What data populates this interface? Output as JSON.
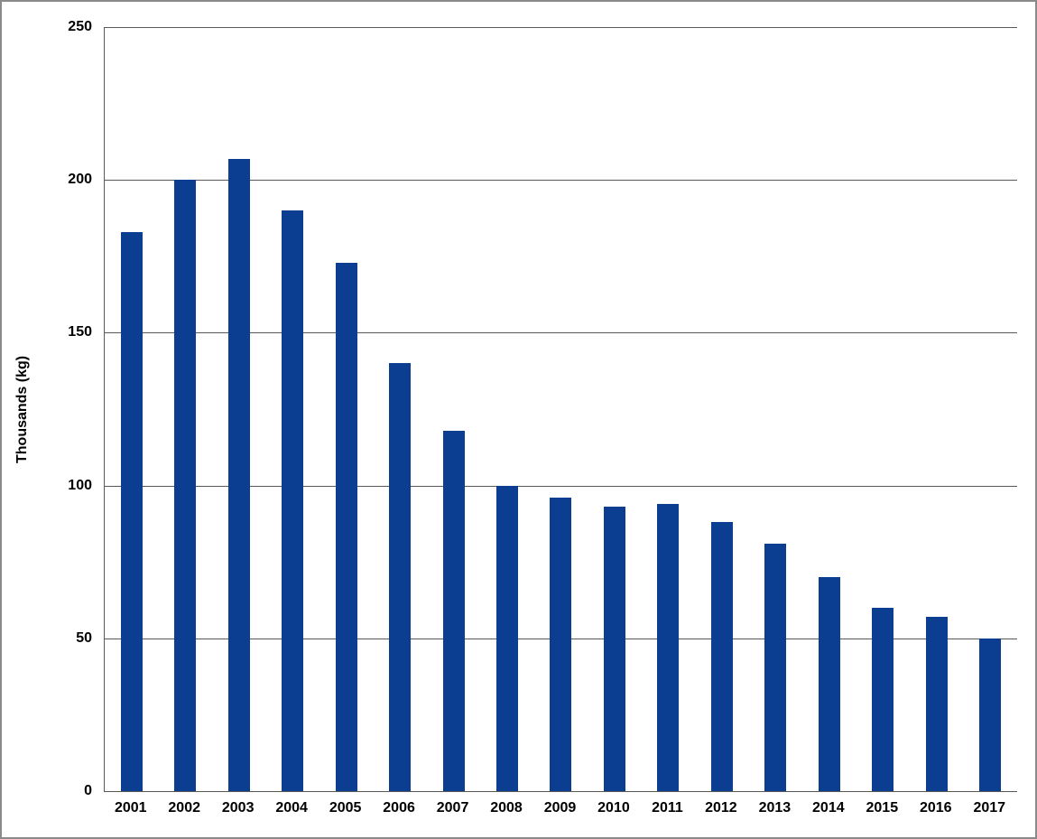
{
  "chart_data": {
    "type": "bar",
    "title": "",
    "categories": [
      "2001",
      "2002",
      "2003",
      "2004",
      "2005",
      "2006",
      "2007",
      "2008",
      "2009",
      "2010",
      "2011",
      "2012",
      "2013",
      "2014",
      "2015",
      "2016",
      "2017"
    ],
    "values": [
      183,
      200,
      207,
      190,
      173,
      140,
      118,
      100,
      96,
      93,
      94,
      88,
      81,
      70,
      60,
      57,
      50
    ],
    "xlabel": "",
    "ylabel": "Thousands (kg)",
    "ylim": [
      0,
      250
    ],
    "yticks": [
      0,
      50,
      100,
      150,
      200,
      250
    ],
    "grid": "horizontal",
    "legend": "none"
  },
  "colors": {
    "bar": "#0B3D91",
    "grid": "#595959",
    "frame_border": "#8a8a8a",
    "background": "#FFFFFF",
    "text": "#000000"
  }
}
